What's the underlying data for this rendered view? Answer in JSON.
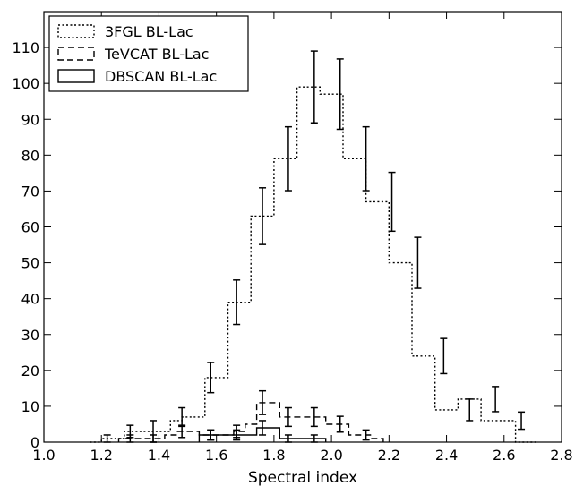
{
  "chart_data": {
    "type": "histogram",
    "title": "",
    "xlabel": "Spectral index",
    "ylabel": "",
    "xlim": [
      1.0,
      2.8
    ],
    "ylim": [
      0,
      120
    ],
    "xticks": [
      "1.0",
      "1.2",
      "1.4",
      "1.6",
      "1.8",
      "2.0",
      "2.2",
      "2.4",
      "2.6",
      "2.8"
    ],
    "yticks": [
      "0",
      "10",
      "20",
      "30",
      "40",
      "50",
      "60",
      "70",
      "80",
      "90",
      "100",
      "110"
    ],
    "legend_position": "top-left",
    "grid": false,
    "series": [
      {
        "name": "3FGL BL-Lac",
        "style": "dotted",
        "edges": [
          1.16,
          1.2,
          1.24,
          1.28,
          1.32,
          1.36,
          1.4,
          1.44,
          1.48,
          1.52,
          1.56,
          1.6,
          1.64,
          1.68,
          1.72,
          1.76,
          1.8,
          1.84,
          1.88,
          1.92,
          1.96,
          2.0,
          2.04,
          2.08,
          2.12,
          2.16,
          2.2,
          2.24,
          2.28,
          2.32,
          2.36,
          2.4,
          2.44,
          2.48,
          2.52,
          2.56,
          2.6,
          2.64,
          2.68,
          2.72
        ],
        "counts": [
          0,
          1,
          1,
          3,
          3,
          3,
          3,
          6,
          7,
          7,
          18,
          18,
          39,
          39,
          63,
          63,
          79,
          79,
          99,
          99,
          97,
          97,
          79,
          79,
          67,
          67,
          50,
          50,
          24,
          24,
          9,
          9,
          12,
          12,
          6,
          6,
          6,
          0,
          0
        ],
        "errors": [
          {
            "x": 1.22,
            "y": 1,
            "err": 1
          },
          {
            "x": 1.3,
            "y": 3,
            "err": 1.7
          },
          {
            "x": 1.38,
            "y": 3,
            "err": 3
          },
          {
            "x": 1.48,
            "y": 7,
            "err": 2.6
          },
          {
            "x": 1.58,
            "y": 18,
            "err": 4.2
          },
          {
            "x": 1.67,
            "y": 39,
            "err": 6.2
          },
          {
            "x": 1.76,
            "y": 63,
            "err": 7.9
          },
          {
            "x": 1.85,
            "y": 79,
            "err": 8.9
          },
          {
            "x": 1.94,
            "y": 99,
            "err": 10
          },
          {
            "x": 2.03,
            "y": 97,
            "err": 9.8
          },
          {
            "x": 2.12,
            "y": 79,
            "err": 8.9
          },
          {
            "x": 2.21,
            "y": 67,
            "err": 8.2
          },
          {
            "x": 2.3,
            "y": 50,
            "err": 7.1
          },
          {
            "x": 2.39,
            "y": 24,
            "err": 4.9
          },
          {
            "x": 2.48,
            "y": 9,
            "err": 3
          },
          {
            "x": 2.57,
            "y": 12,
            "err": 3.5
          },
          {
            "x": 2.66,
            "y": 6,
            "err": 2.4
          }
        ]
      },
      {
        "name": "TeVCAT BL-Lac",
        "style": "dashed",
        "edges": [
          1.26,
          1.3,
          1.34,
          1.38,
          1.42,
          1.46,
          1.5,
          1.54,
          1.58,
          1.62,
          1.66,
          1.7,
          1.74,
          1.78,
          1.82,
          1.86,
          1.9,
          1.94,
          1.98,
          2.02,
          2.06,
          2.1,
          2.14,
          2.18
        ],
        "counts": [
          1,
          1,
          1,
          1,
          2,
          3,
          3,
          2,
          2,
          2,
          3,
          5,
          11,
          11,
          7,
          7,
          7,
          7,
          5,
          5,
          2,
          2,
          1
        ],
        "errors": [
          {
            "x": 1.3,
            "y": 1,
            "err": 1
          },
          {
            "x": 1.38,
            "y": 1,
            "err": 1
          },
          {
            "x": 1.48,
            "y": 3,
            "err": 1.7
          },
          {
            "x": 1.58,
            "y": 2,
            "err": 1.4
          },
          {
            "x": 1.67,
            "y": 3,
            "err": 1.7
          },
          {
            "x": 1.76,
            "y": 11,
            "err": 3.3
          },
          {
            "x": 1.85,
            "y": 7,
            "err": 2.6
          },
          {
            "x": 1.94,
            "y": 7,
            "err": 2.6
          },
          {
            "x": 2.03,
            "y": 5,
            "err": 2.2
          },
          {
            "x": 2.12,
            "y": 2,
            "err": 1.4
          }
        ]
      },
      {
        "name": "DBSCAN BL-Lac",
        "style": "solid",
        "edges": [
          1.54,
          1.58,
          1.62,
          1.66,
          1.7,
          1.74,
          1.78,
          1.82,
          1.86,
          1.9,
          1.94,
          1.98
        ],
        "counts": [
          2,
          2,
          2,
          2,
          2,
          4,
          4,
          1,
          1,
          1,
          1
        ],
        "errors": [
          {
            "x": 1.58,
            "y": 2,
            "err": 1.4
          },
          {
            "x": 1.67,
            "y": 2,
            "err": 1.4
          },
          {
            "x": 1.76,
            "y": 4,
            "err": 2
          },
          {
            "x": 1.85,
            "y": 1,
            "err": 1
          },
          {
            "x": 1.94,
            "y": 1,
            "err": 1
          }
        ]
      }
    ]
  }
}
